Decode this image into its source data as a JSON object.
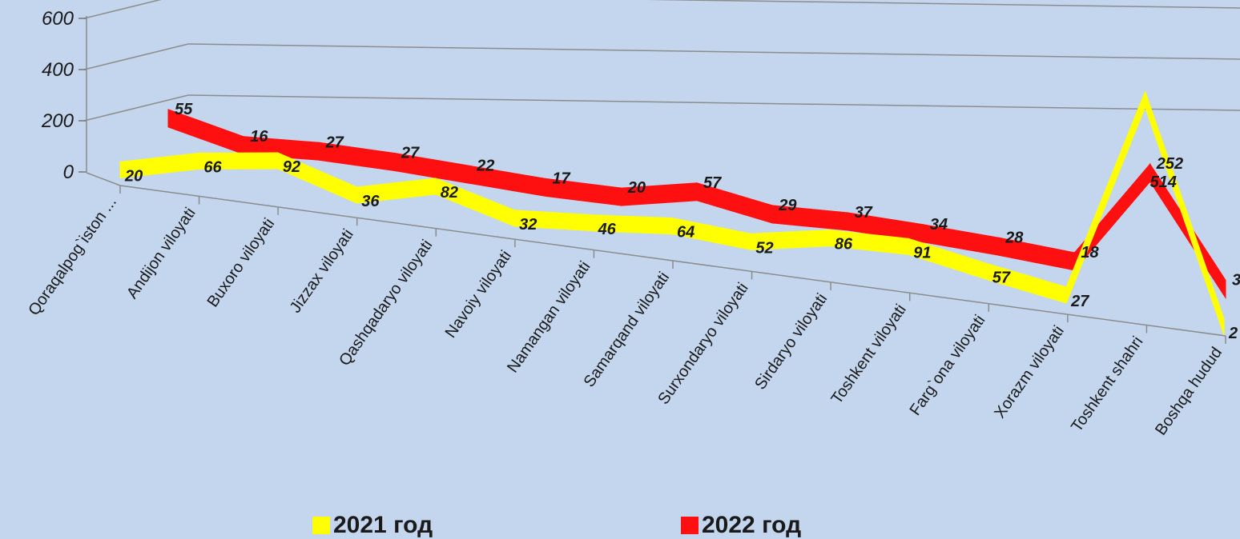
{
  "chart_data": {
    "type": "area",
    "categories": [
      "Qoraqalpog`iston ...",
      "Andijon viloyati",
      "Buxoro viloyati",
      "Jizzax viloyati",
      "Qashqadaryo viloyati",
      "Navoiy viloyati",
      "Namangan viloyati",
      "Samarqand viloyati",
      "Surxondaryo viloyati",
      "Sirdaryo viloyati",
      "Toshkent viloyati",
      "Farg`ona viloyati",
      "Xorazm viloyati",
      "Toshkent shahri",
      "Boshqa hudud"
    ],
    "series": [
      {
        "name": "2021 год",
        "color": "#ffff00",
        "values": [
          20,
          66,
          92,
          36,
          82,
          32,
          46,
          64,
          52,
          86,
          91,
          57,
          27,
          514,
          2
        ]
      },
      {
        "name": "2022 год",
        "color": "#ff1010",
        "values": [
          55,
          16,
          27,
          27,
          22,
          17,
          20,
          57,
          29,
          37,
          34,
          28,
          18,
          252,
          3
        ]
      }
    ],
    "yticks": [
      "0",
      "200",
      "400",
      "600"
    ],
    "ylim": [
      0,
      600
    ],
    "legend_position": "bottom",
    "grid": true
  }
}
